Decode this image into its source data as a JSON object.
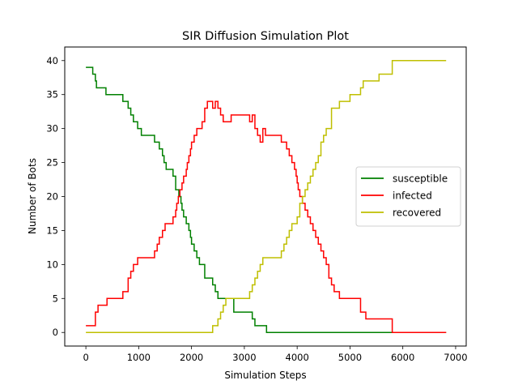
{
  "chart_data": {
    "type": "line",
    "title": "SIR Diffusion Simulation Plot",
    "xlabel": "Simulation Steps",
    "ylabel": "Number of Bots",
    "xlim": [
      -400,
      7200
    ],
    "ylim": [
      -2,
      42
    ],
    "xticks": [
      0,
      1000,
      2000,
      3000,
      4000,
      5000,
      6000,
      7000
    ],
    "yticks": [
      0,
      5,
      10,
      15,
      20,
      25,
      30,
      35,
      40
    ],
    "grid": false,
    "legend_position": "center-right",
    "series": [
      {
        "name": "susceptible",
        "color": "#008000",
        "step": true,
        "x": [
          0,
          130,
          180,
          200,
          380,
          700,
          800,
          850,
          900,
          980,
          1050,
          1300,
          1390,
          1450,
          1480,
          1520,
          1650,
          1700,
          1760,
          1800,
          1820,
          1850,
          1900,
          1950,
          1980,
          2000,
          2050,
          2100,
          2150,
          2250,
          2400,
          2450,
          2500,
          2800,
          3150,
          3200,
          3420,
          3430,
          6820
        ],
        "values": [
          39,
          38,
          37,
          36,
          35,
          34,
          33,
          32,
          31,
          30,
          29,
          28,
          27,
          26,
          25,
          24,
          23,
          21,
          20,
          19,
          18,
          17,
          16,
          15,
          14,
          13,
          12,
          11,
          10,
          8,
          7,
          6,
          5,
          3,
          2,
          1,
          0,
          0,
          0
        ]
      },
      {
        "name": "infected",
        "color": "#ff0000",
        "step": true,
        "x": [
          0,
          130,
          180,
          230,
          400,
          700,
          800,
          850,
          900,
          980,
          1050,
          1300,
          1350,
          1390,
          1450,
          1500,
          1650,
          1700,
          1720,
          1750,
          1780,
          1820,
          1850,
          1900,
          1920,
          1950,
          1980,
          2000,
          2050,
          2100,
          2200,
          2250,
          2300,
          2400,
          2450,
          2500,
          2550,
          2600,
          2650,
          2750,
          2800,
          2950,
          3100,
          3150,
          3200,
          3250,
          3300,
          3350,
          3400,
          3450,
          3700,
          3800,
          3850,
          3900,
          3950,
          3980,
          4000,
          4020,
          4050,
          4100,
          4150,
          4200,
          4250,
          4300,
          4350,
          4400,
          4450,
          4500,
          4550,
          4600,
          4650,
          4700,
          4800,
          5200,
          5300,
          5800,
          6820
        ],
        "values": [
          1,
          1,
          3,
          4,
          5,
          6,
          8,
          9,
          10,
          11,
          11,
          12,
          13,
          14,
          15,
          16,
          17,
          18,
          19,
          20,
          21,
          22,
          23,
          24,
          25,
          26,
          27,
          28,
          29,
          30,
          31,
          33,
          34,
          33,
          34,
          33,
          32,
          31,
          31,
          32,
          32,
          32,
          31,
          32,
          30,
          29,
          28,
          30,
          29,
          29,
          28,
          27,
          26,
          25,
          24,
          23,
          22,
          21,
          20,
          19,
          18,
          17,
          16,
          15,
          14,
          13,
          12,
          11,
          10,
          8,
          7,
          6,
          5,
          3,
          2,
          0,
          0
        ]
      },
      {
        "name": "recovered",
        "color": "#bfbf00",
        "step": true,
        "x": [
          0,
          2400,
          2500,
          2550,
          2600,
          2650,
          2800,
          3100,
          3150,
          3200,
          3250,
          3300,
          3350,
          3450,
          3700,
          3750,
          3800,
          3850,
          3900,
          4000,
          4050,
          4100,
          4150,
          4200,
          4250,
          4300,
          4350,
          4400,
          4450,
          4500,
          4550,
          4650,
          4800,
          5000,
          5100,
          5200,
          5250,
          5500,
          5550,
          5800,
          6820
        ],
        "values": [
          0,
          1,
          2,
          3,
          4,
          5,
          5,
          6,
          7,
          8,
          9,
          10,
          11,
          11,
          12,
          13,
          14,
          15,
          16,
          17,
          19,
          20,
          21,
          22,
          23,
          24,
          25,
          26,
          28,
          29,
          30,
          33,
          34,
          35,
          35,
          36,
          37,
          37,
          38,
          40,
          40
        ]
      }
    ]
  }
}
